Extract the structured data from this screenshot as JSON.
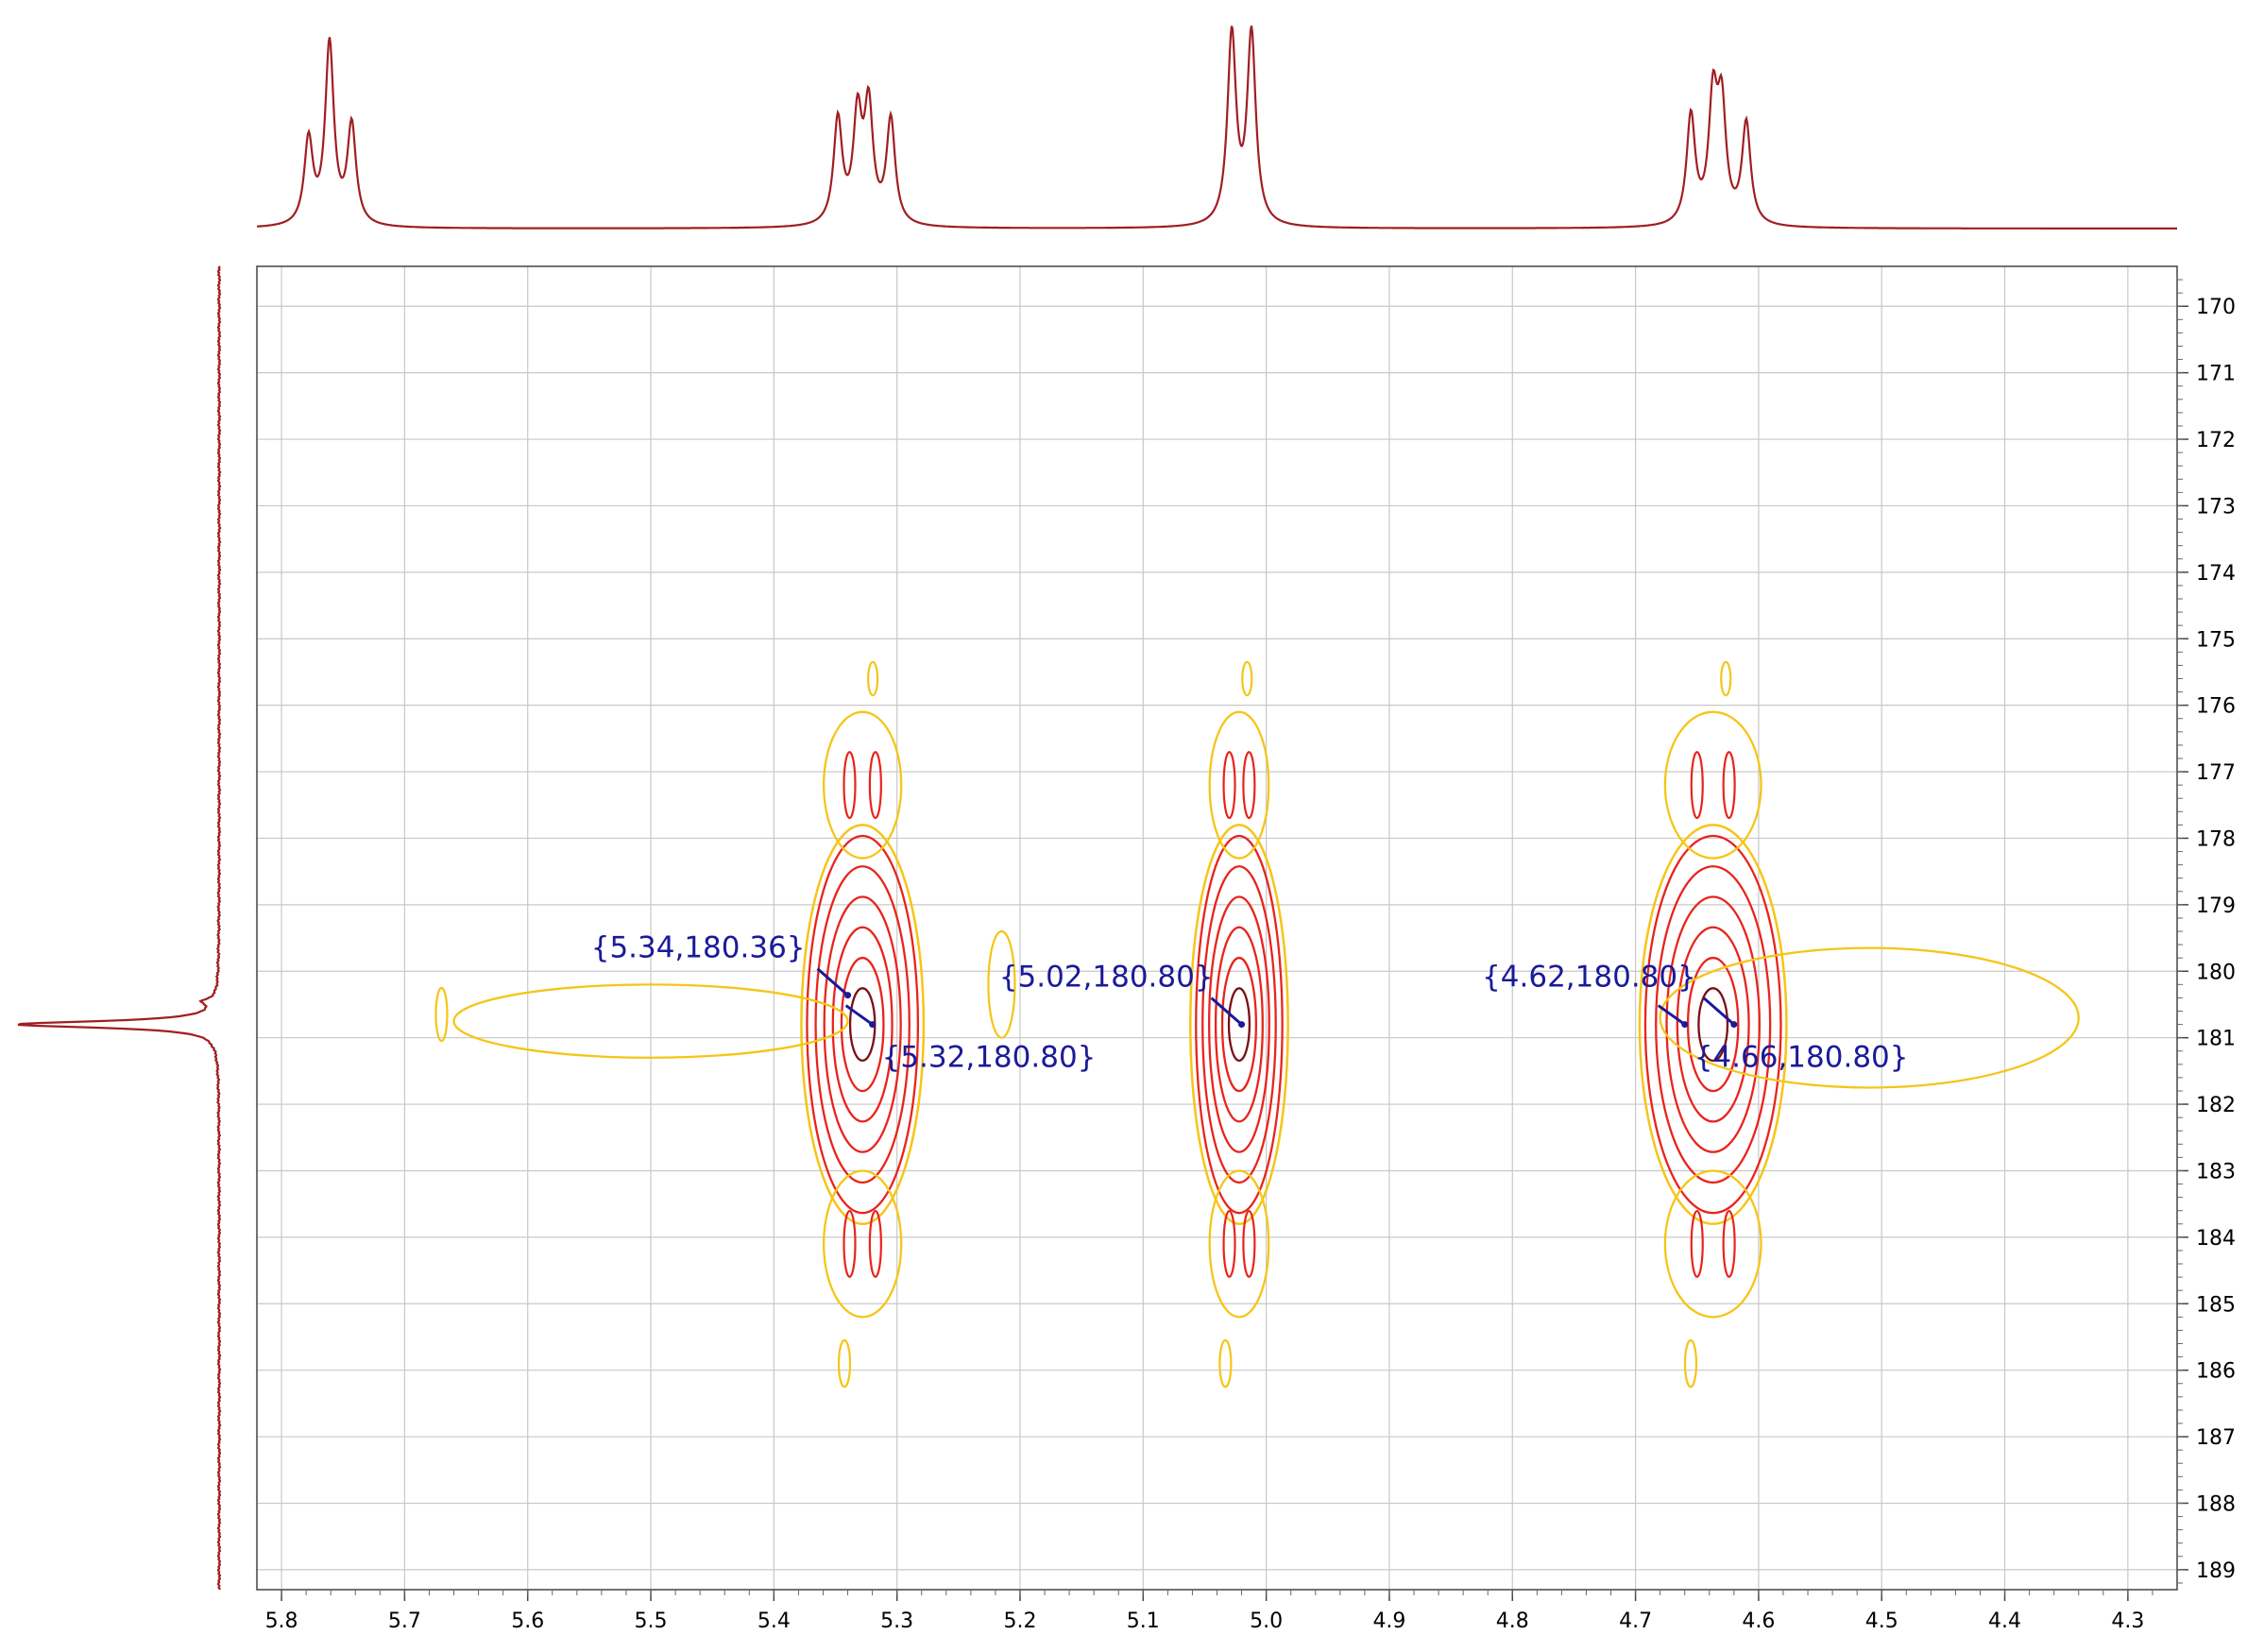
{
  "chart_data": {
    "type": "contour",
    "title": "",
    "xlabel": "",
    "ylabel": "",
    "x_range": [
      5.82,
      4.26
    ],
    "y_range": [
      169.4,
      189.3
    ],
    "x_ticks": [
      "5.8",
      "5.7",
      "5.6",
      "5.5",
      "5.4",
      "5.3",
      "5.2",
      "5.1",
      "5.0",
      "4.9",
      "4.8",
      "4.7",
      "4.6",
      "4.5",
      "4.4",
      "4.3"
    ],
    "y_ticks": [
      "170",
      "171",
      "172",
      "173",
      "174",
      "175",
      "176",
      "177",
      "178",
      "179",
      "180",
      "181",
      "182",
      "183",
      "184",
      "185",
      "186",
      "187",
      "188",
      "189"
    ],
    "grid": true,
    "colors": {
      "outer_contour": "#f5c518",
      "inner_contour": "#e8241c",
      "core_contour": "#7a0f16",
      "spectrum": "#a01e22",
      "label": "#1a1a9a"
    },
    "proton_spectrum_peaks": [
      {
        "group": "multiplet-5.76",
        "ppm": [
          5.778,
          5.761,
          5.743
        ],
        "heights": [
          0.47,
          1.0,
          0.55
        ]
      },
      {
        "group": "multiplet-5.33",
        "ppm": [
          5.348,
          5.332,
          5.323,
          5.305
        ],
        "heights": [
          0.58,
          0.58,
          0.63,
          0.58
        ]
      },
      {
        "group": "doublet-5.02",
        "ppm": [
          5.028,
          5.012
        ],
        "heights": [
          1.05,
          1.05
        ]
      },
      {
        "group": "multiplet-4.63",
        "ppm": [
          4.655,
          4.637,
          4.63,
          4.61
        ],
        "heights": [
          0.6,
          0.66,
          0.62,
          0.56
        ]
      }
    ],
    "carbon_projection_peak": 180.8,
    "cross_peaks": [
      {
        "label": "{5.34,180.36}",
        "x": 5.34,
        "y": 180.36
      },
      {
        "label": "{5.32,180.80}",
        "x": 5.32,
        "y": 180.8
      },
      {
        "label": "{5.02,180.80}",
        "x": 5.02,
        "y": 180.8
      },
      {
        "label": "{4.62,180.80}",
        "x": 4.62,
        "y": 180.8
      },
      {
        "label": "{4.66,180.80}",
        "x": 4.66,
        "y": 180.8
      }
    ],
    "contour_clusters": [
      {
        "x": 5.328,
        "y": 180.8,
        "width": 0.042,
        "levels": 6
      },
      {
        "x": 5.022,
        "y": 180.8,
        "width": 0.032,
        "levels": 6
      },
      {
        "x": 4.637,
        "y": 180.8,
        "width": 0.052,
        "levels": 6
      }
    ]
  }
}
